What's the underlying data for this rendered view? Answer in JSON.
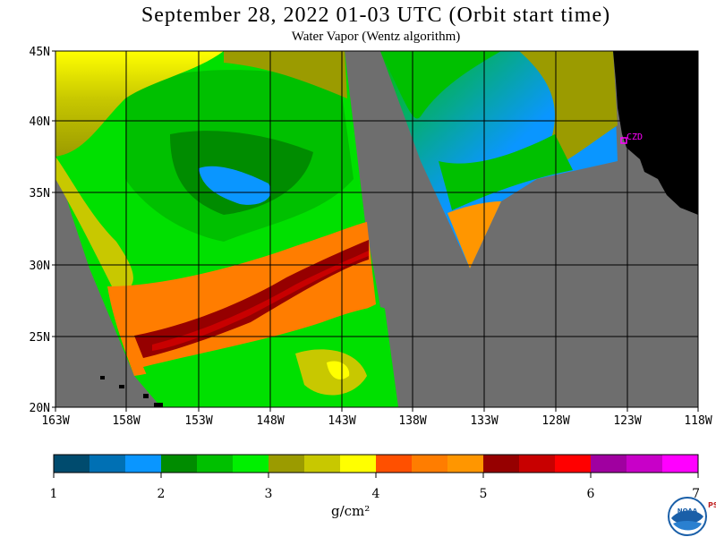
{
  "title": "September 28, 2022  01-03 UTC  (Orbit start time)",
  "subtitle": "Water Vapor (Wentz algorithm)",
  "map": {
    "lat_labels": [
      "45N",
      "40N",
      "35N",
      "30N",
      "25N",
      "20N"
    ],
    "lon_labels": [
      "163W",
      "158W",
      "153W",
      "148W",
      "143W",
      "138W",
      "133W",
      "128W",
      "123W",
      "118W"
    ],
    "station_label": "CZD",
    "colors": {
      "no_data": "#6e6e6e",
      "land": "#000000",
      "station": "#ff00ff"
    }
  },
  "colorbar": {
    "tick_labels": [
      "1",
      "2",
      "3",
      "4",
      "5",
      "6",
      "7"
    ],
    "unit": "g/cm²",
    "colors": [
      "#004b6e",
      "#0070b4",
      "#0a96ff",
      "#008c00",
      "#00c000",
      "#00f000",
      "#9b9b00",
      "#c8c800",
      "#ffff00",
      "#ff5000",
      "#ff7d00",
      "#ff9600",
      "#960000",
      "#c80000",
      "#ff0000",
      "#a000a0",
      "#c800c8",
      "#ff00ff"
    ]
  },
  "logos": {
    "noaa": "NOAA",
    "psl": "PSL"
  }
}
